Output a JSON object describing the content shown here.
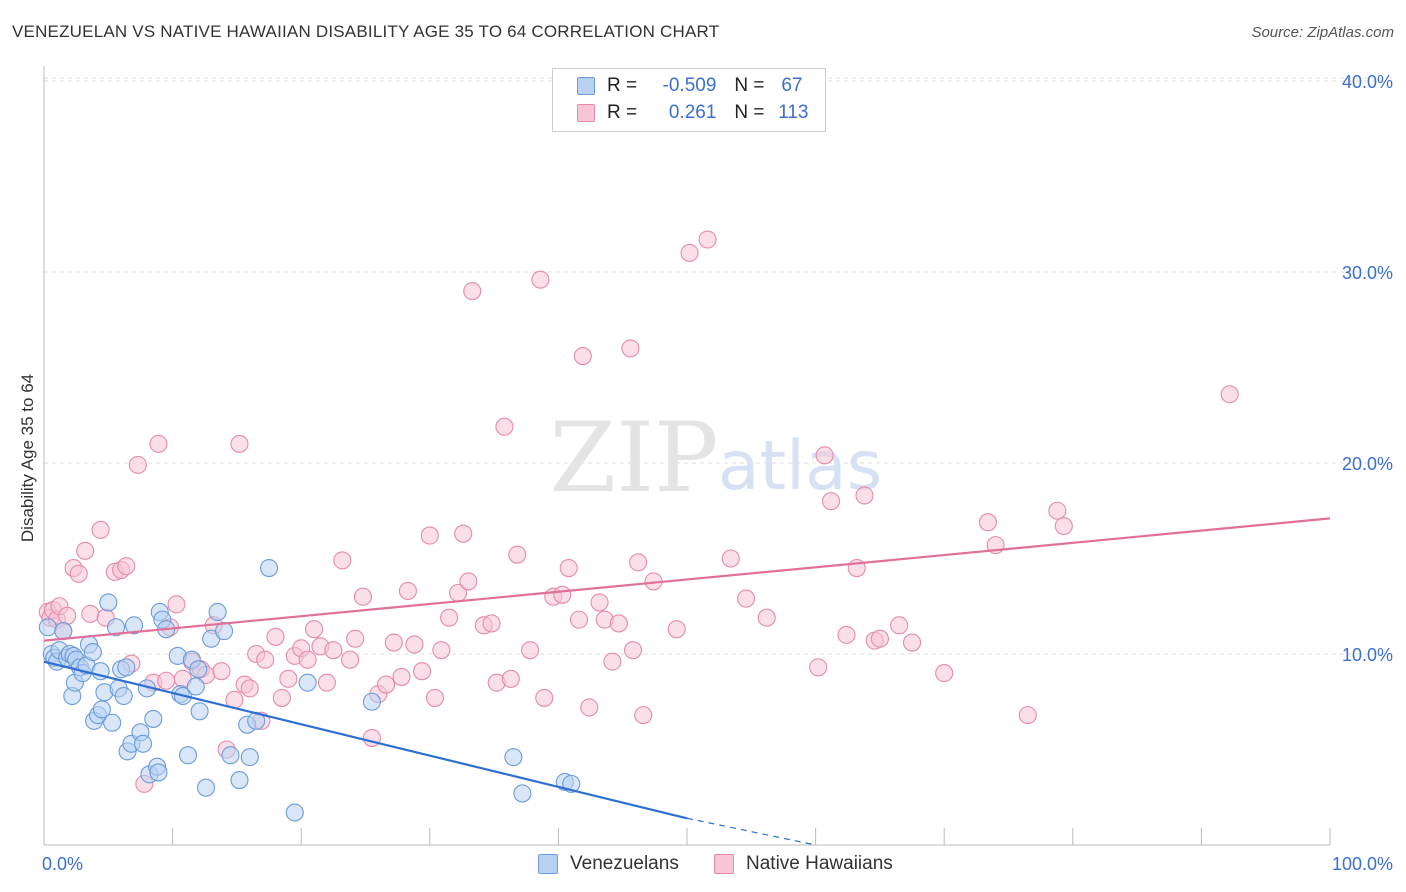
{
  "header": {
    "title": "VENEZUELAN VS NATIVE HAWAIIAN DISABILITY AGE 35 TO 64 CORRELATION CHART",
    "source": "Source: ZipAtlas.com"
  },
  "watermark": {
    "zip": "ZIP",
    "atlas": "atlas"
  },
  "legend": {
    "rows": [
      {
        "r_label": "R =",
        "r_value": "-0.509",
        "n_label": "N =",
        "n_value": "67"
      },
      {
        "r_label": "R =",
        "r_value": "0.261",
        "n_label": "N =",
        "n_value": "113"
      }
    ]
  },
  "bottom_legend": [
    "Venezuelans",
    "Native Hawaiians"
  ],
  "colors": {
    "venezuelan_fill": "#b8d1f3",
    "venezuelan_stroke": "#6b9bd8",
    "venezuelan_line": "#2f6fd1",
    "hawaiian_fill": "#f8c5d6",
    "hawaiian_stroke": "#e58aab",
    "hawaiian_line": "#e0709a",
    "tick_label": "#3a6fd0"
  },
  "chart_data": {
    "type": "scatter",
    "title": "VENEZUELAN VS NATIVE HAWAIIAN DISABILITY AGE 35 TO 64 CORRELATION CHART",
    "xlabel": "",
    "ylabel": "Disability Age 35 to 64",
    "xlim": [
      0,
      100
    ],
    "ylim": [
      0,
      41
    ],
    "x_tick_labels": [
      "0.0%",
      "100.0%"
    ],
    "y_ticks": [
      10,
      20,
      30,
      40
    ],
    "y_tick_labels": [
      "10.0%",
      "20.0%",
      "30.0%",
      "40.0%"
    ],
    "grid": true,
    "legend_position": "top-center",
    "series": [
      {
        "name": "Venezuelans",
        "r": -0.509,
        "n": 67,
        "trend": {
          "x": [
            0,
            50
          ],
          "y": [
            9.6,
            1.4
          ],
          "dashed_to": [
            60,
            0
          ]
        },
        "points": [
          [
            0.3,
            11.4
          ],
          [
            0.6,
            10.0
          ],
          [
            0.8,
            9.8
          ],
          [
            1.0,
            9.6
          ],
          [
            1.2,
            10.2
          ],
          [
            1.5,
            11.2
          ],
          [
            1.8,
            9.8
          ],
          [
            2.0,
            10.0
          ],
          [
            2.3,
            9.9
          ],
          [
            2.5,
            9.7
          ],
          [
            2.2,
            7.8
          ],
          [
            2.4,
            8.5
          ],
          [
            2.8,
            9.3
          ],
          [
            3.0,
            9.0
          ],
          [
            3.3,
            9.4
          ],
          [
            3.5,
            10.5
          ],
          [
            3.8,
            10.1
          ],
          [
            3.9,
            6.5
          ],
          [
            4.2,
            6.8
          ],
          [
            4.4,
            9.1
          ],
          [
            4.5,
            7.1
          ],
          [
            4.7,
            8.0
          ],
          [
            5.0,
            12.7
          ],
          [
            5.3,
            6.4
          ],
          [
            5.6,
            11.4
          ],
          [
            5.8,
            8.2
          ],
          [
            6.0,
            9.2
          ],
          [
            6.2,
            7.8
          ],
          [
            6.4,
            9.3
          ],
          [
            6.5,
            4.9
          ],
          [
            6.8,
            5.3
          ],
          [
            7.0,
            11.5
          ],
          [
            7.5,
            5.9
          ],
          [
            7.7,
            5.3
          ],
          [
            8.0,
            8.2
          ],
          [
            8.2,
            3.7
          ],
          [
            8.5,
            6.6
          ],
          [
            8.8,
            4.1
          ],
          [
            8.9,
            3.8
          ],
          [
            9.0,
            12.2
          ],
          [
            9.2,
            11.8
          ],
          [
            9.5,
            11.3
          ],
          [
            10.4,
            9.9
          ],
          [
            10.6,
            7.9
          ],
          [
            10.8,
            7.8
          ],
          [
            11.2,
            4.7
          ],
          [
            11.5,
            9.7
          ],
          [
            11.8,
            8.3
          ],
          [
            12.0,
            9.2
          ],
          [
            12.1,
            7.0
          ],
          [
            12.6,
            3.0
          ],
          [
            13.0,
            10.8
          ],
          [
            13.5,
            12.2
          ],
          [
            14.0,
            11.2
          ],
          [
            14.5,
            4.7
          ],
          [
            15.2,
            3.4
          ],
          [
            15.8,
            6.3
          ],
          [
            16.0,
            4.6
          ],
          [
            16.5,
            6.5
          ],
          [
            17.5,
            14.5
          ],
          [
            19.5,
            1.7
          ],
          [
            20.5,
            8.5
          ],
          [
            25.5,
            7.5
          ],
          [
            36.5,
            4.6
          ],
          [
            37.2,
            2.7
          ],
          [
            40.5,
            3.3
          ],
          [
            41.0,
            3.2
          ]
        ]
      },
      {
        "name": "Native Hawaiians",
        "r": 0.261,
        "n": 113,
        "trend": {
          "x": [
            0,
            100
          ],
          "y": [
            10.7,
            17.1
          ]
        },
        "points": [
          [
            0.3,
            12.2
          ],
          [
            0.5,
            11.9
          ],
          [
            0.7,
            12.3
          ],
          [
            1.0,
            11.8
          ],
          [
            1.2,
            12.5
          ],
          [
            1.5,
            11.2
          ],
          [
            1.8,
            12.0
          ],
          [
            2.3,
            14.5
          ],
          [
            2.7,
            14.2
          ],
          [
            3.2,
            15.4
          ],
          [
            3.6,
            12.1
          ],
          [
            4.4,
            16.5
          ],
          [
            4.8,
            11.9
          ],
          [
            5.5,
            14.3
          ],
          [
            6.0,
            14.4
          ],
          [
            6.4,
            14.6
          ],
          [
            6.8,
            9.5
          ],
          [
            7.3,
            19.9
          ],
          [
            7.8,
            3.2
          ],
          [
            8.5,
            8.5
          ],
          [
            8.9,
            21.0
          ],
          [
            9.5,
            8.6
          ],
          [
            9.8,
            11.4
          ],
          [
            10.3,
            12.6
          ],
          [
            10.8,
            8.7
          ],
          [
            11.5,
            9.6
          ],
          [
            12.2,
            9.2
          ],
          [
            12.6,
            8.9
          ],
          [
            13.2,
            11.5
          ],
          [
            13.8,
            9.1
          ],
          [
            14.2,
            5.0
          ],
          [
            14.8,
            7.6
          ],
          [
            15.2,
            21.0
          ],
          [
            15.6,
            8.4
          ],
          [
            16.0,
            8.2
          ],
          [
            16.5,
            10.0
          ],
          [
            16.9,
            6.5
          ],
          [
            17.2,
            9.7
          ],
          [
            18.0,
            10.9
          ],
          [
            18.5,
            7.7
          ],
          [
            19.0,
            8.7
          ],
          [
            19.5,
            9.9
          ],
          [
            20.0,
            10.3
          ],
          [
            20.5,
            9.7
          ],
          [
            21.0,
            11.3
          ],
          [
            21.5,
            10.4
          ],
          [
            22.0,
            8.5
          ],
          [
            22.5,
            10.2
          ],
          [
            23.2,
            14.9
          ],
          [
            23.8,
            9.7
          ],
          [
            24.2,
            10.8
          ],
          [
            24.8,
            13.0
          ],
          [
            25.5,
            5.6
          ],
          [
            26.0,
            7.9
          ],
          [
            26.6,
            8.4
          ],
          [
            27.2,
            10.6
          ],
          [
            27.8,
            8.8
          ],
          [
            28.3,
            13.3
          ],
          [
            28.8,
            10.5
          ],
          [
            29.4,
            9.1
          ],
          [
            30.0,
            16.2
          ],
          [
            30.4,
            7.7
          ],
          [
            30.9,
            10.2
          ],
          [
            31.5,
            11.9
          ],
          [
            32.2,
            13.2
          ],
          [
            32.6,
            16.3
          ],
          [
            33.0,
            13.8
          ],
          [
            33.3,
            29.0
          ],
          [
            34.2,
            11.5
          ],
          [
            34.8,
            11.6
          ],
          [
            35.2,
            8.5
          ],
          [
            35.8,
            21.9
          ],
          [
            36.3,
            8.7
          ],
          [
            36.8,
            15.2
          ],
          [
            37.8,
            10.2
          ],
          [
            38.6,
            29.6
          ],
          [
            38.9,
            7.7
          ],
          [
            39.6,
            13.0
          ],
          [
            40.3,
            13.1
          ],
          [
            40.8,
            14.5
          ],
          [
            41.6,
            11.8
          ],
          [
            41.9,
            25.6
          ],
          [
            42.4,
            7.2
          ],
          [
            43.2,
            12.7
          ],
          [
            43.6,
            11.8
          ],
          [
            44.2,
            9.6
          ],
          [
            44.7,
            11.6
          ],
          [
            45.6,
            26.0
          ],
          [
            45.8,
            10.2
          ],
          [
            46.2,
            14.8
          ],
          [
            46.6,
            6.8
          ],
          [
            47.4,
            13.8
          ],
          [
            49.2,
            11.3
          ],
          [
            50.2,
            31.0
          ],
          [
            51.6,
            31.7
          ],
          [
            53.4,
            15.0
          ],
          [
            54.6,
            12.9
          ],
          [
            56.2,
            11.9
          ],
          [
            60.2,
            9.3
          ],
          [
            60.7,
            20.4
          ],
          [
            61.2,
            18.0
          ],
          [
            62.4,
            11.0
          ],
          [
            63.2,
            14.5
          ],
          [
            63.8,
            18.3
          ],
          [
            64.6,
            10.7
          ],
          [
            65.0,
            10.8
          ],
          [
            66.5,
            11.5
          ],
          [
            67.5,
            10.6
          ],
          [
            70.0,
            9.0
          ],
          [
            73.4,
            16.9
          ],
          [
            74.0,
            15.7
          ],
          [
            76.5,
            6.8
          ],
          [
            78.8,
            17.5
          ],
          [
            79.3,
            16.7
          ],
          [
            92.2,
            23.6
          ]
        ]
      }
    ]
  }
}
